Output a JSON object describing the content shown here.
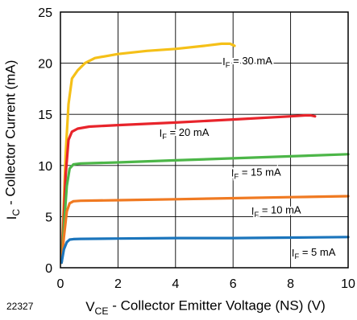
{
  "chart_data": {
    "type": "line",
    "figure_id": "22327",
    "xlabel": {
      "main": "V",
      "sub": "CE",
      "rest": " - Collector Emitter Voltage (NS) (V)"
    },
    "ylabel": {
      "main": "I",
      "sub": "C",
      "rest": " - Collector Current (mA)"
    },
    "xlim": [
      0,
      10
    ],
    "ylim": [
      0,
      25
    ],
    "xticks": [
      0,
      2,
      4,
      6,
      8,
      10
    ],
    "yticks": [
      0,
      5,
      10,
      15,
      20,
      25
    ],
    "grid": true,
    "series": [
      {
        "label": {
          "main": "I",
          "sub": "F",
          "rest": " = 30 mA"
        },
        "label_at": [
          6.5,
          20.2
        ],
        "color": "#f5c018",
        "x": [
          0.04,
          0.1,
          0.18,
          0.28,
          0.4,
          0.6,
          0.85,
          1.2,
          2.0,
          3.0,
          4.0,
          5.0,
          5.6,
          5.9,
          6.05
        ],
        "y": [
          0.5,
          5.0,
          11.0,
          16.0,
          18.5,
          19.3,
          20.0,
          20.5,
          20.9,
          21.2,
          21.4,
          21.7,
          21.9,
          21.9,
          21.7
        ]
      },
      {
        "label": {
          "main": "I",
          "sub": "F",
          "rest": " = 20 mA"
        },
        "label_at": [
          4.3,
          13.2
        ],
        "color": "#e8242b",
        "x": [
          0.04,
          0.1,
          0.18,
          0.28,
          0.4,
          0.6,
          1.0,
          2.0,
          4.0,
          6.0,
          8.0,
          8.5,
          8.7,
          8.85
        ],
        "y": [
          0.5,
          4.0,
          9.0,
          12.5,
          13.3,
          13.6,
          13.8,
          13.95,
          14.2,
          14.5,
          14.8,
          14.9,
          14.9,
          14.8
        ]
      },
      {
        "label": {
          "main": "I",
          "sub": "F",
          "rest": " = 15 mA"
        },
        "label_at": [
          6.8,
          9.3
        ],
        "color": "#4cb648",
        "x": [
          0.04,
          0.12,
          0.22,
          0.32,
          0.45,
          0.7,
          2.0,
          4.0,
          6.0,
          8.0,
          10.0
        ],
        "y": [
          0.5,
          4.0,
          8.0,
          9.7,
          10.1,
          10.2,
          10.3,
          10.5,
          10.7,
          10.9,
          11.1
        ]
      },
      {
        "label": {
          "main": "I",
          "sub": "F",
          "rest": " = 10 mA"
        },
        "label_at": [
          7.5,
          5.6
        ],
        "color": "#f07a22",
        "x": [
          0.04,
          0.12,
          0.22,
          0.32,
          0.45,
          0.7,
          2.0,
          4.0,
          6.0,
          8.0,
          10.0
        ],
        "y": [
          0.5,
          3.0,
          5.5,
          6.3,
          6.5,
          6.55,
          6.6,
          6.7,
          6.8,
          6.9,
          7.0
        ]
      },
      {
        "label": {
          "main": "I",
          "sub": "F",
          "rest": " = 5 mA"
        },
        "label_at": [
          8.8,
          1.5
        ],
        "color": "#1b75bc",
        "x": [
          0.04,
          0.12,
          0.22,
          0.32,
          0.45,
          0.7,
          2.0,
          4.0,
          6.0,
          8.0,
          10.0
        ],
        "y": [
          0.5,
          1.8,
          2.5,
          2.75,
          2.8,
          2.82,
          2.85,
          2.9,
          2.9,
          2.95,
          3.0
        ]
      }
    ]
  }
}
